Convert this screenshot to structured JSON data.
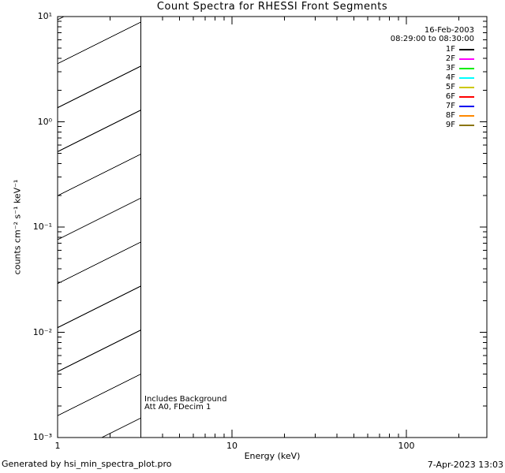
{
  "chart_data": {
    "type": "line",
    "title": "Count Spectra for RHESSI Front Segments",
    "xlabel": "Energy (keV)",
    "ylabel": "counts cm⁻² s⁻¹ keV⁻¹",
    "x_scale": "log",
    "y_scale": "log",
    "xlim": [
      1,
      290
    ],
    "ylim": [
      0.001,
      10
    ],
    "x_tick_values": [
      1,
      10,
      100
    ],
    "x_tick_labels": [
      "1",
      "10",
      "100"
    ],
    "y_tick_values": [
      10,
      1,
      0.1,
      0.01,
      0.001
    ],
    "y_tick_labels": [
      "10¹",
      "10⁰",
      "10⁻¹",
      "10⁻²",
      "10⁻³"
    ],
    "grid": false,
    "plot_empty": true,
    "background_band": {
      "x_from": 1,
      "x_to": 3,
      "style": "diagonal-hatch"
    },
    "legend": {
      "position": "top-right",
      "date": "16-Feb-2003",
      "time_range": "08:29:00 to 08:30:00",
      "series": [
        {
          "name": "1F",
          "color": "#000000"
        },
        {
          "name": "2F",
          "color": "#ff00ff"
        },
        {
          "name": "3F",
          "color": "#00ee00"
        },
        {
          "name": "4F",
          "color": "#00ffff"
        },
        {
          "name": "5F",
          "color": "#cdc800"
        },
        {
          "name": "6F",
          "color": "#ff0000"
        },
        {
          "name": "7F",
          "color": "#0000f0"
        },
        {
          "name": "8F",
          "color": "#ff8800"
        },
        {
          "name": "9F",
          "color": "#8b750f"
        }
      ]
    },
    "annotations": [
      "Includes Background",
      "Att A0, FDecim 1"
    ],
    "footer_left": "Generated by hsi_min_spectra_plot.pro",
    "footer_right": "7-Apr-2023 13:03",
    "axis_color": "#000000"
  }
}
